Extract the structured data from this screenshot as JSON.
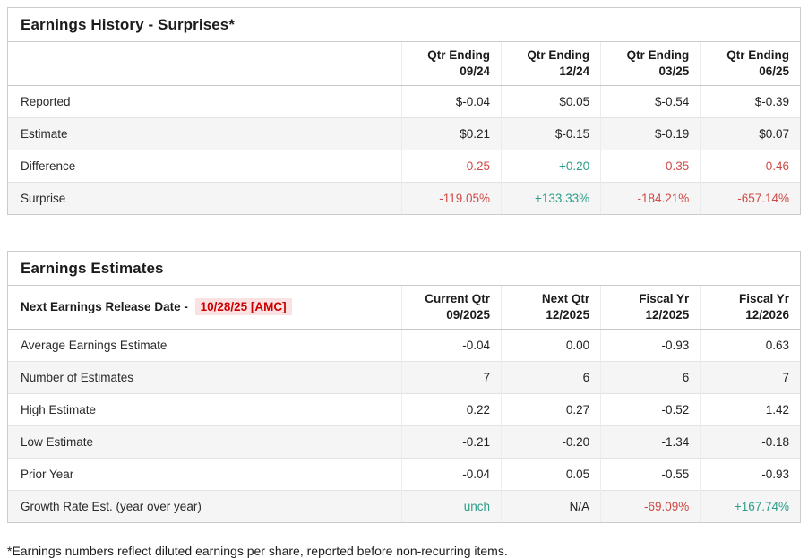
{
  "colors": {
    "negative": "#cf4a47",
    "positive": "#2c9e8a",
    "release_red": "#cc0000",
    "release_bg": "#fbe2e2",
    "stripe": "#f5f5f5",
    "border": "#cbcbcb"
  },
  "earnings_history": {
    "title": "Earnings History - Surprises*",
    "columns": [
      {
        "line1": "Qtr Ending",
        "line2": "09/24"
      },
      {
        "line1": "Qtr Ending",
        "line2": "12/24"
      },
      {
        "line1": "Qtr Ending",
        "line2": "03/25"
      },
      {
        "line1": "Qtr Ending",
        "line2": "06/25"
      }
    ],
    "rows": [
      {
        "label": "Reported",
        "values": [
          "$-0.04",
          "$0.05",
          "$-0.54",
          "$-0.39"
        ],
        "tones": [
          "",
          "",
          "",
          ""
        ]
      },
      {
        "label": "Estimate",
        "values": [
          "$0.21",
          "$-0.15",
          "$-0.19",
          "$0.07"
        ],
        "tones": [
          "",
          "",
          "",
          ""
        ]
      },
      {
        "label": "Difference",
        "values": [
          "-0.25",
          "+0.20",
          "-0.35",
          "-0.46"
        ],
        "tones": [
          "neg",
          "pos",
          "neg",
          "neg"
        ]
      },
      {
        "label": "Surprise",
        "values": [
          "-119.05%",
          "+133.33%",
          "-184.21%",
          "-657.14%"
        ],
        "tones": [
          "neg",
          "pos",
          "neg",
          "neg"
        ]
      }
    ]
  },
  "earnings_estimates": {
    "title": "Earnings Estimates",
    "release_label": "Next Earnings Release Date -",
    "release_value": "10/28/25 [AMC]",
    "columns": [
      {
        "line1": "Current Qtr",
        "line2": "09/2025"
      },
      {
        "line1": "Next Qtr",
        "line2": "12/2025"
      },
      {
        "line1": "Fiscal Yr",
        "line2": "12/2025"
      },
      {
        "line1": "Fiscal Yr",
        "line2": "12/2026"
      }
    ],
    "rows": [
      {
        "label": "Average Earnings Estimate",
        "values": [
          "-0.04",
          "0.00",
          "-0.93",
          "0.63"
        ],
        "tones": [
          "",
          "",
          "",
          ""
        ]
      },
      {
        "label": "Number of Estimates",
        "values": [
          "7",
          "6",
          "6",
          "7"
        ],
        "tones": [
          "",
          "",
          "",
          ""
        ]
      },
      {
        "label": "High Estimate",
        "values": [
          "0.22",
          "0.27",
          "-0.52",
          "1.42"
        ],
        "tones": [
          "",
          "",
          "",
          ""
        ]
      },
      {
        "label": "Low Estimate",
        "values": [
          "-0.21",
          "-0.20",
          "-1.34",
          "-0.18"
        ],
        "tones": [
          "",
          "",
          "",
          ""
        ]
      },
      {
        "label": "Prior Year",
        "values": [
          "-0.04",
          "0.05",
          "-0.55",
          "-0.93"
        ],
        "tones": [
          "",
          "",
          "",
          ""
        ]
      },
      {
        "label": "Growth Rate Est. (year over year)",
        "values": [
          "unch",
          "N/A",
          "-69.09%",
          "+167.74%"
        ],
        "tones": [
          "pos",
          "",
          "neg",
          "pos"
        ]
      }
    ]
  },
  "footnote": "*Earnings numbers reflect diluted earnings per share, reported before non-recurring items."
}
